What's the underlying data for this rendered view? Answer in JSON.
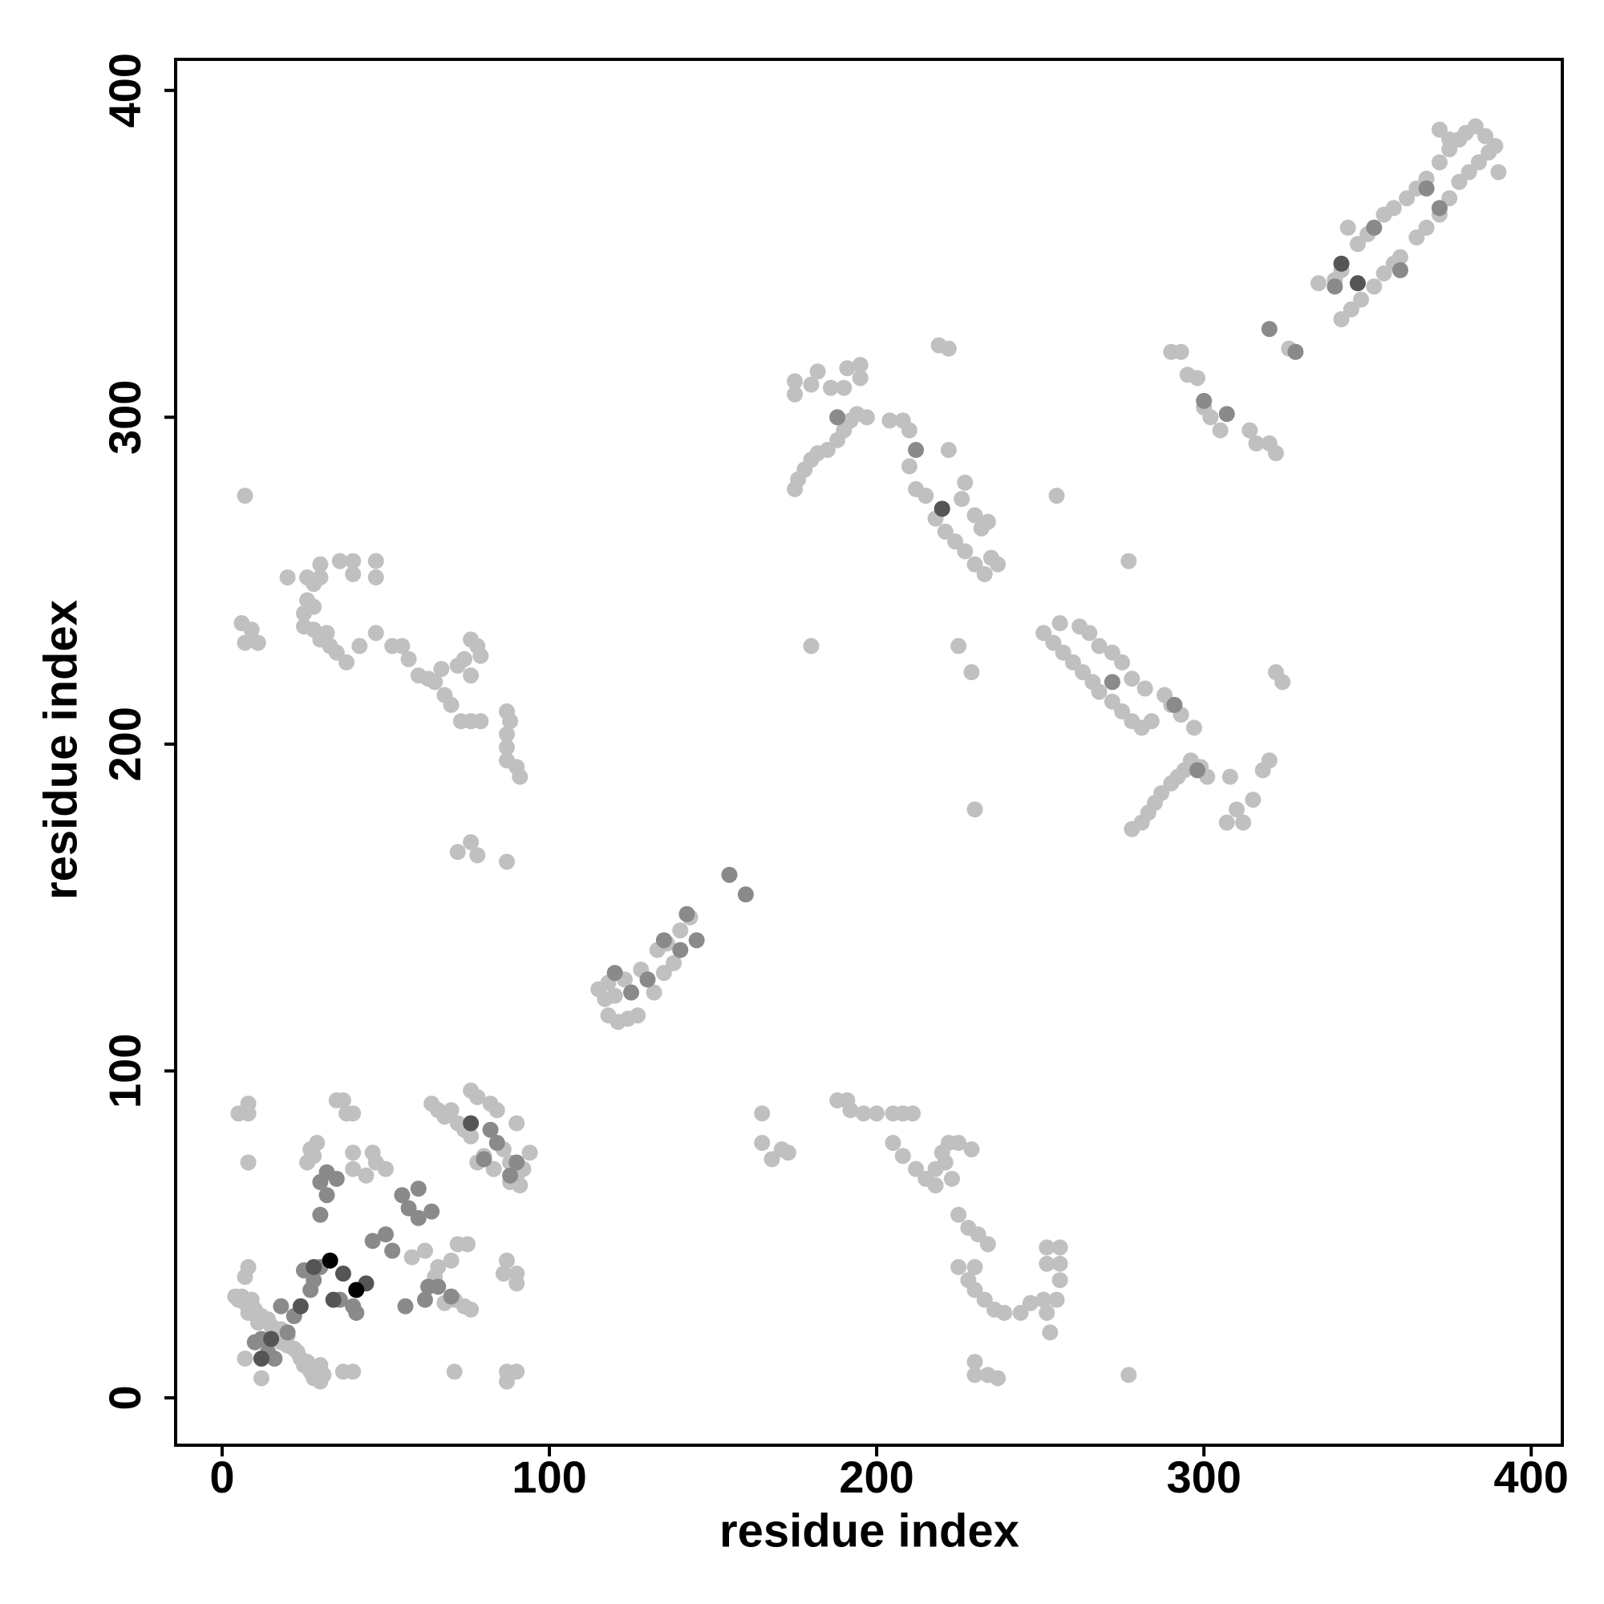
{
  "chart_data": {
    "type": "scatter",
    "x_label": "residue index",
    "y_label": "residue index",
    "xlim": [
      -14.2,
      409.5
    ],
    "ylim": [
      -14.5,
      409.5
    ],
    "xticks": [
      0,
      100,
      200,
      300,
      400
    ],
    "yticks": [
      0,
      100,
      200,
      300,
      400
    ],
    "grid": false,
    "series": [
      {
        "color": "#c0c0c0",
        "x": [
          5,
          7,
          9,
          10,
          12,
          14,
          15,
          17,
          18,
          20,
          8,
          11,
          4,
          6,
          9,
          22,
          24,
          25,
          27,
          28,
          30,
          29,
          26,
          23,
          20,
          18,
          16,
          12,
          7,
          30,
          31,
          40,
          37,
          71,
          87,
          90,
          87,
          8,
          7,
          8,
          5,
          8,
          8,
          26,
          27,
          29,
          28,
          40,
          46,
          47,
          50,
          40,
          44,
          35,
          37,
          38,
          40,
          58,
          62,
          66,
          70,
          72,
          75,
          76,
          74,
          71,
          68,
          65,
          87,
          90,
          90,
          86,
          64,
          66,
          68,
          70,
          72,
          74,
          76,
          78,
          76,
          82,
          84,
          86,
          88,
          90,
          92,
          94,
          80,
          78,
          83,
          88,
          91,
          90,
          115,
          117,
          118,
          120,
          123,
          128,
          133,
          136,
          140,
          143,
          118,
          121,
          124,
          127,
          132,
          135,
          138,
          7,
          6,
          7,
          9,
          11,
          20,
          26,
          28,
          30,
          30,
          26,
          25,
          28,
          25,
          28,
          30,
          32,
          33,
          35,
          36,
          40,
          40,
          47,
          47,
          38,
          42,
          47,
          52,
          55,
          57,
          60,
          63,
          65,
          67,
          68,
          70,
          72,
          74,
          76,
          78,
          79,
          73,
          76,
          79,
          87,
          88,
          87,
          87,
          87,
          90,
          91,
          72,
          76,
          78,
          87,
          76,
          165,
          165,
          168,
          171,
          173,
          188,
          191,
          192,
          196,
          200,
          205,
          208,
          211,
          205,
          208,
          212,
          215,
          218,
          218,
          220,
          222,
          225,
          229,
          221,
          223,
          225,
          228,
          231,
          234,
          225,
          228,
          230,
          230,
          233,
          236,
          239,
          244,
          247,
          251,
          252,
          253,
          255,
          252,
          252,
          256,
          256,
          256,
          230,
          230,
          234,
          237,
          277,
          175,
          176,
          178,
          180,
          182,
          185,
          188,
          190,
          192,
          194,
          197,
          175,
          175,
          180,
          182,
          186,
          190,
          191,
          195,
          195,
          204,
          208,
          210,
          210,
          212,
          215,
          218,
          221,
          224,
          227,
          230,
          233,
          235,
          237,
          226,
          230,
          232,
          234,
          227,
          222,
          219,
          222,
          225,
          229,
          230,
          180,
          255,
          277,
          251,
          254,
          257,
          260,
          263,
          266,
          268,
          272,
          275,
          278,
          281,
          284,
          256,
          262,
          265,
          268,
          272,
          275,
          278,
          282,
          288,
          290,
          293,
          297,
          278,
          281,
          283,
          285,
          287,
          290,
          292,
          294,
          296,
          299,
          301,
          307,
          310,
          312,
          315,
          318,
          320,
          322,
          324,
          308,
          290,
          293,
          295,
          298,
          300,
          302,
          305,
          314,
          316,
          320,
          322,
          326,
          335,
          340,
          342,
          344,
          347,
          350,
          355,
          358,
          362,
          365,
          368,
          372,
          375,
          378,
          380,
          383,
          386,
          372,
          375,
          345,
          342,
          348,
          352,
          355,
          358,
          360,
          365,
          368,
          372,
          375,
          378,
          381,
          384,
          387,
          390,
          389
        ],
        "y": [
          30,
          29,
          28,
          27,
          25,
          24,
          22,
          20,
          21,
          19,
          26,
          23,
          31,
          31,
          30,
          15,
          12,
          10,
          8,
          6,
          5,
          9,
          11,
          14,
          16,
          17,
          12,
          6,
          12,
          10,
          7,
          8,
          8,
          8,
          8,
          8,
          5,
          40,
          37,
          72,
          87,
          90,
          87,
          72,
          76,
          78,
          74,
          75,
          75,
          72,
          70,
          70,
          68,
          91,
          91,
          87,
          87,
          43,
          45,
          40,
          42,
          47,
          47,
          27,
          28,
          30,
          29,
          37,
          42,
          38,
          35,
          38,
          90,
          88,
          86,
          88,
          84,
          82,
          80,
          92,
          94,
          90,
          88,
          76,
          72,
          68,
          70,
          75,
          74,
          72,
          70,
          66,
          65,
          84,
          125,
          122,
          127,
          123,
          128,
          131,
          137,
          139,
          143,
          147,
          117,
          115,
          116,
          117,
          124,
          130,
          133,
          276,
          237,
          231,
          235,
          231,
          251,
          251,
          249,
          251,
          255,
          244,
          240,
          242,
          236,
          235,
          232,
          234,
          230,
          228,
          256,
          256,
          252,
          256,
          251,
          225,
          230,
          234,
          230,
          230,
          226,
          221,
          220,
          219,
          223,
          215,
          212,
          224,
          226,
          221,
          230,
          227,
          207,
          207,
          207,
          210,
          207,
          203,
          199,
          195,
          193,
          190,
          167,
          170,
          166,
          164,
          232,
          87,
          78,
          73,
          76,
          75,
          91,
          91,
          88,
          87,
          87,
          87,
          87,
          87,
          78,
          74,
          70,
          67,
          70,
          65,
          75,
          78,
          78,
          76,
          72,
          67,
          56,
          52,
          50,
          47,
          40,
          36,
          40,
          33,
          30,
          27,
          26,
          26,
          29,
          30,
          26,
          20,
          30,
          41,
          46,
          46,
          41,
          36,
          11,
          7,
          7,
          6,
          7,
          278,
          281,
          284,
          287,
          289,
          290,
          293,
          296,
          299,
          301,
          300,
          311,
          307,
          310,
          314,
          309,
          309,
          315,
          316,
          312,
          299,
          299,
          296,
          285,
          278,
          276,
          269,
          265,
          262,
          259,
          255,
          252,
          257,
          255,
          275,
          270,
          266,
          268,
          280,
          290,
          322,
          321,
          230,
          222,
          180,
          230,
          276,
          256,
          234,
          231,
          228,
          225,
          222,
          219,
          216,
          213,
          210,
          207,
          205,
          207,
          237,
          236,
          234,
          230,
          228,
          225,
          220,
          217,
          215,
          212,
          209,
          205,
          174,
          176,
          179,
          182,
          185,
          188,
          190,
          192,
          195,
          193,
          190,
          176,
          180,
          176,
          183,
          192,
          195,
          222,
          219,
          190,
          320,
          320,
          313,
          312,
          303,
          300,
          296,
          296,
          292,
          292,
          289,
          321,
          341,
          342,
          345,
          358,
          353,
          356,
          362,
          364,
          367,
          370,
          373,
          378,
          382,
          385,
          387,
          389,
          386,
          388,
          385,
          333,
          330,
          336,
          340,
          344,
          347,
          349,
          355,
          358,
          362,
          367,
          372,
          375,
          378,
          381,
          375,
          383
        ]
      },
      {
        "color": "#8a8a8a",
        "x": [
          10,
          12,
          14,
          16,
          20,
          18,
          22,
          27,
          28,
          30,
          25,
          30,
          30,
          32,
          35,
          32,
          36,
          40,
          41,
          46,
          50,
          52,
          55,
          57,
          60,
          64,
          60,
          63,
          66,
          70,
          56,
          62,
          80,
          82,
          84,
          88,
          90,
          120,
          125,
          130,
          135,
          142,
          140,
          145,
          155,
          160,
          188,
          212,
          272,
          291,
          298,
          300,
          307,
          320,
          328,
          340,
          352,
          360,
          368,
          372
        ],
        "y": [
          17,
          18,
          14,
          12,
          20,
          28,
          25,
          33,
          36,
          40,
          39,
          56,
          66,
          69,
          67,
          62,
          30,
          28,
          26,
          48,
          50,
          45,
          62,
          58,
          64,
          57,
          55,
          34,
          34,
          31,
          28,
          30,
          73,
          82,
          78,
          68,
          72,
          130,
          124,
          128,
          140,
          148,
          137,
          140,
          160,
          154,
          300,
          290,
          219,
          212,
          192,
          305,
          301,
          327,
          320,
          340,
          358,
          345,
          370,
          364
        ]
      },
      {
        "color": "#555555",
        "x": [
          12,
          15,
          24,
          28,
          34,
          37,
          44,
          76,
          220,
          342,
          347
        ],
        "y": [
          12,
          18,
          28,
          40,
          30,
          38,
          35,
          84,
          272,
          347,
          341
        ]
      },
      {
        "color": "#000000",
        "x": [
          33,
          41
        ],
        "y": [
          42,
          33
        ]
      }
    ]
  }
}
